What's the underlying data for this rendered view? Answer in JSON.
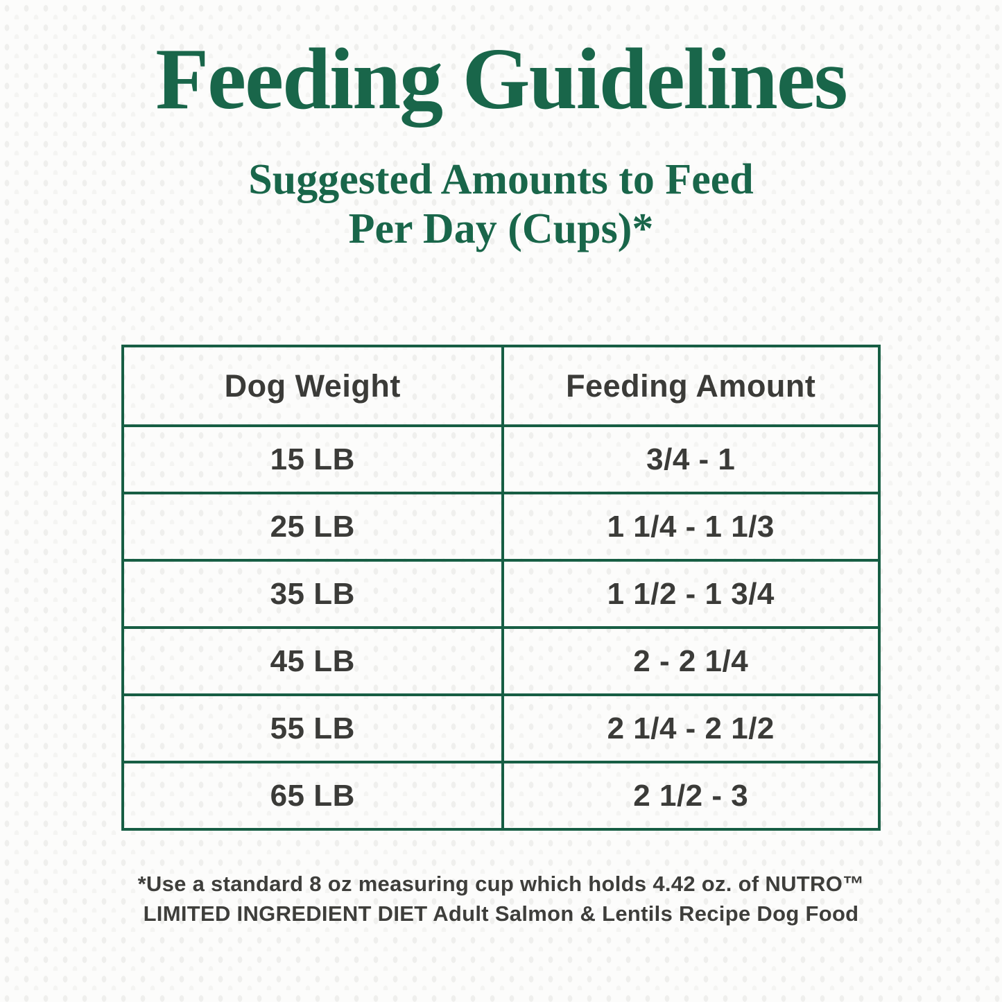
{
  "page": {
    "title": "Feeding Guidelines",
    "subtitle_line1": "Suggested Amounts to Feed",
    "subtitle_line2": "Per Day (Cups)*"
  },
  "table": {
    "columns": [
      "Dog Weight",
      "Feeding Amount"
    ],
    "rows": [
      {
        "weight": "15 LB",
        "amount": "3/4 - 1"
      },
      {
        "weight": "25 LB",
        "amount": "1 1/4 - 1 1/3"
      },
      {
        "weight": "35 LB",
        "amount": "1 1/2 - 1 3/4"
      },
      {
        "weight": "45 LB",
        "amount": "2 - 2 1/4"
      },
      {
        "weight": "55 LB",
        "amount": "2 1/4 - 2 1/2"
      },
      {
        "weight": "65 LB",
        "amount": "2 1/2 - 3"
      }
    ]
  },
  "footnote": {
    "line1": "*Use a standard 8 oz measuring cup which holds 4.42 oz. of NUTRO™",
    "line2": "LIMITED INGREDIENT DIET Adult Salmon & Lentils Recipe Dog Food"
  },
  "colors": {
    "accent_green": "#19664a",
    "border_green": "#175e44",
    "text_dark": "#3b3b38",
    "background": "#fcfcfb"
  },
  "chart_data": {
    "type": "table",
    "title": "Feeding Guidelines",
    "subtitle": "Suggested Amounts to Feed Per Day (Cups)*",
    "columns": [
      "Dog Weight",
      "Feeding Amount"
    ],
    "rows": [
      [
        "15 LB",
        "3/4 - 1"
      ],
      [
        "25 LB",
        "1 1/4 - 1 1/3"
      ],
      [
        "35 LB",
        "1 1/2 - 1 3/4"
      ],
      [
        "45 LB",
        "2 - 2 1/4"
      ],
      [
        "55 LB",
        "2 1/4 - 2 1/2"
      ],
      [
        "65 LB",
        "2 1/2 - 3"
      ]
    ],
    "footnote": "*Use a standard 8 oz measuring cup which holds 4.42 oz. of NUTRO™ LIMITED INGREDIENT DIET Adult Salmon & Lentils Recipe Dog Food"
  }
}
